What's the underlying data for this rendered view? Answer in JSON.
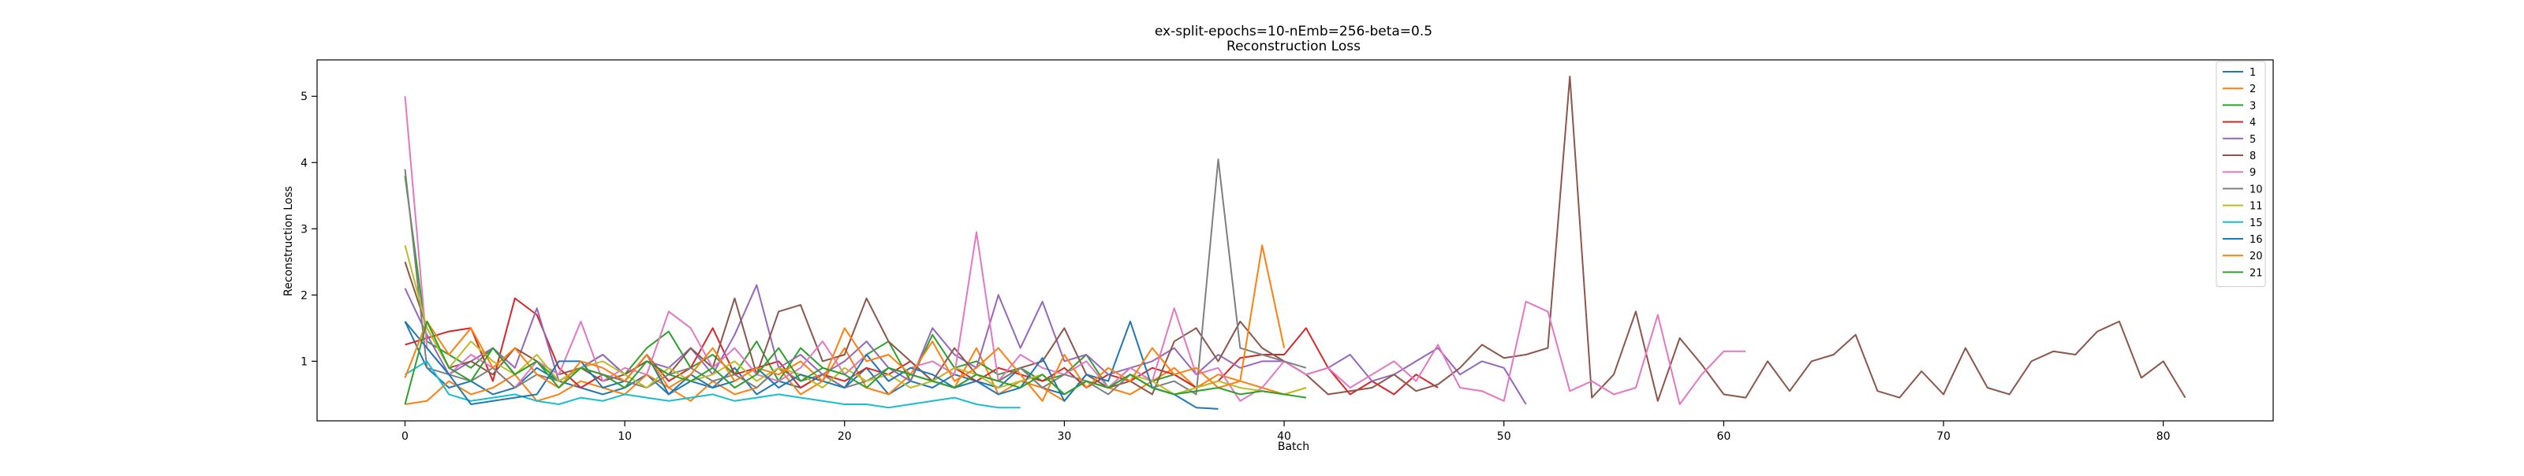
{
  "chart_data": {
    "type": "line",
    "title": "ex-split-epochs=10-nEmb=256-beta=0.5",
    "subtitle": "Reconstruction Loss",
    "xlabel": "Batch",
    "ylabel": "Reconstruction Loss",
    "xlim": [
      -4,
      85
    ],
    "ylim": [
      0.1,
      5.55
    ],
    "xticks": [
      0,
      10,
      20,
      30,
      40,
      50,
      60,
      70,
      80
    ],
    "yticks": [
      1,
      2,
      3,
      4,
      5
    ],
    "grid": false,
    "legend": "top-right",
    "series": [
      {
        "name": "1",
        "color": "#1f77b4",
        "values": [
          1.6,
          0.9,
          0.6,
          0.7,
          0.5,
          0.6,
          0.9,
          0.7,
          0.6,
          0.5,
          0.6,
          0.8,
          0.5,
          0.7,
          0.6,
          0.9,
          0.5,
          0.7,
          0.6,
          0.8,
          0.6,
          0.9,
          0.5,
          0.7,
          0.6,
          0.8,
          0.7,
          0.6,
          0.9,
          0.6,
          0.5,
          0.7,
          0.6,
          0.8,
          0.6,
          0.5
        ]
      },
      {
        "name": "2",
        "color": "#ff7f0e",
        "values": [
          0.35,
          0.4,
          0.7,
          0.5,
          0.6,
          0.8,
          0.4,
          0.5,
          0.7,
          0.6,
          0.5,
          0.8,
          0.6,
          0.4,
          0.7,
          0.5,
          0.6,
          0.9,
          0.5,
          0.7,
          1.2,
          0.6,
          0.5,
          0.8,
          0.7,
          0.6,
          1.2,
          0.5,
          0.7,
          0.6,
          0.4,
          0.8,
          0.6,
          0.5,
          0.7,
          0.9,
          0.6,
          0.8,
          0.7,
          0.6,
          0.5,
          0.6
        ]
      },
      {
        "name": "3",
        "color": "#2ca02c",
        "values": [
          3.8,
          1.3,
          1.1,
          0.9,
          1.2,
          0.8,
          1.0,
          0.7,
          0.9,
          1.1,
          0.8,
          1.2,
          1.45,
          0.9,
          1.1,
          0.8,
          1.3,
          0.7,
          1.2,
          0.9,
          0.8,
          1.1,
          1.3,
          0.7,
          1.4,
          0.9,
          1.0,
          0.8,
          0.9,
          0.7,
          0.8,
          1.1,
          0.6,
          0.9,
          0.7,
          0.8,
          0.6
        ]
      },
      {
        "name": "4",
        "color": "#d62728",
        "values": [
          1.25,
          1.35,
          1.45,
          1.5,
          0.7,
          1.95,
          1.7,
          0.9,
          0.6,
          0.8,
          0.7,
          1.1,
          0.7,
          0.9,
          1.5,
          0.8,
          0.9,
          1.0,
          0.6,
          0.8,
          0.7,
          0.9,
          0.8,
          1.0,
          0.7,
          0.9,
          0.7,
          0.9,
          0.8,
          0.7,
          0.9,
          0.6,
          0.8,
          0.7,
          0.9,
          0.8,
          0.6,
          0.7,
          1.05,
          1.1,
          1.1,
          1.5,
          0.9,
          0.5,
          0.7,
          0.5,
          0.8,
          0.6
        ]
      },
      {
        "name": "5",
        "color": "#9467bd",
        "values": [
          2.1,
          1.4,
          0.8,
          1.0,
          1.2,
          0.9,
          1.8,
          0.7,
          0.9,
          1.1,
          0.8,
          1.0,
          0.9,
          1.2,
          0.8,
          1.4,
          2.15,
          0.9,
          1.1,
          0.8,
          1.0,
          1.3,
          0.9,
          0.7,
          1.5,
          1.1,
          0.9,
          2.0,
          1.2,
          1.9,
          1.0,
          1.1,
          0.8,
          0.9,
          1.0,
          1.2,
          0.8,
          1.1,
          0.9,
          1.0,
          1.0,
          0.8,
          0.9,
          1.1,
          0.7,
          0.8,
          1.0,
          1.2,
          0.8,
          1.0,
          0.9,
          0.35
        ]
      },
      {
        "name": "8",
        "color": "#8c564b",
        "values": [
          2.5,
          1.5,
          0.9,
          1.0,
          0.8,
          1.2,
          1.0,
          0.8,
          0.9,
          0.7,
          0.8,
          1.0,
          0.8,
          1.2,
          0.9,
          1.95,
          0.8,
          1.75,
          1.85,
          1.0,
          1.1,
          1.95,
          1.3,
          1.0,
          0.7,
          1.2,
          0.8,
          0.7,
          0.9,
          1.0,
          1.5,
          0.8,
          0.6,
          0.7,
          0.5,
          1.3,
          1.5,
          1.0,
          1.6,
          1.2,
          1.0,
          0.8,
          0.5,
          0.55,
          0.6,
          0.8,
          0.55,
          0.65,
          0.9,
          1.25,
          1.05,
          1.1,
          1.2,
          5.3,
          0.45,
          0.8,
          1.75,
          0.4,
          1.35,
          0.95,
          0.5,
          0.45,
          1.0,
          0.55,
          1.0,
          1.1,
          1.4,
          0.55,
          0.45,
          0.85,
          0.5,
          1.2,
          0.6,
          0.5,
          1.0,
          1.15,
          1.1,
          1.45,
          1.6,
          0.75,
          1.0,
          0.45
        ]
      },
      {
        "name": "9",
        "color": "#e377c2",
        "values": [
          5.0,
          1.2,
          0.8,
          1.1,
          0.9,
          0.6,
          1.0,
          0.8,
          1.6,
          0.7,
          0.9,
          0.8,
          1.75,
          1.5,
          0.9,
          1.2,
          0.8,
          0.7,
          0.9,
          1.3,
          0.8,
          1.1,
          0.7,
          0.9,
          1.0,
          0.8,
          2.95,
          0.7,
          1.1,
          0.9,
          0.8,
          1.0,
          0.6,
          0.9,
          0.7,
          1.8,
          0.8,
          0.9,
          0.4,
          0.6,
          1.0,
          0.8,
          0.9,
          0.6,
          0.8,
          1.0,
          0.7,
          1.25,
          0.6,
          0.55,
          0.4,
          1.9,
          1.75,
          0.55,
          0.7,
          0.5,
          0.6,
          1.7,
          0.35,
          0.8,
          1.15,
          1.15
        ]
      },
      {
        "name": "10",
        "color": "#7f7f7f",
        "values": [
          3.9,
          0.9,
          0.8,
          0.7,
          0.9,
          0.6,
          0.8,
          0.7,
          0.9,
          0.8,
          0.7,
          0.6,
          0.8,
          0.9,
          0.7,
          0.8,
          0.6,
          0.9,
          0.7,
          0.8,
          0.6,
          0.7,
          0.9,
          0.8,
          0.7,
          0.6,
          0.8,
          0.7,
          0.9,
          0.6,
          0.8,
          0.7,
          0.5,
          0.8,
          0.6,
          0.7,
          0.5,
          4.05,
          1.2,
          1.1,
          1.0,
          0.9
        ]
      },
      {
        "name": "11",
        "color": "#bcbd22",
        "values": [
          2.75,
          1.5,
          0.9,
          1.3,
          1.0,
          0.8,
          1.1,
          0.7,
          0.9,
          1.0,
          0.8,
          0.6,
          0.9,
          0.7,
          0.8,
          1.0,
          0.7,
          0.9,
          0.8,
          0.6,
          0.9,
          0.7,
          0.8,
          0.6,
          0.7,
          0.9,
          0.8,
          0.6,
          0.7,
          0.8,
          0.5,
          0.7,
          0.6,
          0.8,
          0.7,
          0.5,
          0.6,
          0.7,
          0.6,
          0.55,
          0.5,
          0.6
        ]
      },
      {
        "name": "15",
        "color": "#17becf",
        "values": [
          0.8,
          1.0,
          0.5,
          0.4,
          0.45,
          0.5,
          0.4,
          0.35,
          0.45,
          0.4,
          0.5,
          0.45,
          0.4,
          0.45,
          0.5,
          0.4,
          0.45,
          0.5,
          0.45,
          0.4,
          0.35,
          0.35,
          0.3,
          0.35,
          0.4,
          0.45,
          0.35,
          0.3,
          0.3
        ]
      },
      {
        "name": "16",
        "color": "#1f77b4",
        "values": [
          1.6,
          1.2,
          0.8,
          0.35,
          0.4,
          0.45,
          0.5,
          1.0,
          1.0,
          0.6,
          0.7,
          1.1,
          0.5,
          0.8,
          0.6,
          0.7,
          0.9,
          0.6,
          0.8,
          0.7,
          0.6,
          1.1,
          0.7,
          0.9,
          0.8,
          0.6,
          0.7,
          0.5,
          0.6,
          1.05,
          0.4,
          0.8,
          0.7,
          1.6,
          0.6,
          0.5,
          0.3,
          0.28
        ]
      },
      {
        "name": "20",
        "color": "#ff7f0e",
        "values": [
          0.75,
          1.6,
          1.1,
          1.5,
          0.9,
          1.2,
          0.8,
          0.6,
          1.0,
          0.9,
          0.7,
          1.1,
          0.6,
          0.8,
          1.2,
          0.7,
          0.9,
          0.8,
          1.0,
          0.7,
          1.5,
          1.0,
          1.1,
          0.8,
          1.3,
          0.7,
          0.9,
          1.2,
          0.8,
          0.4,
          1.1,
          0.6,
          0.9,
          0.7,
          1.2,
          0.8,
          0.9,
          0.6,
          0.7,
          2.75,
          1.2
        ]
      },
      {
        "name": "21",
        "color": "#2ca02c",
        "values": [
          0.35,
          1.6,
          0.9,
          0.7,
          1.2,
          0.8,
          1.0,
          0.6,
          0.9,
          0.8,
          0.6,
          1.0,
          0.8,
          0.7,
          0.9,
          0.6,
          0.8,
          1.2,
          0.7,
          0.9,
          0.8,
          0.6,
          0.9,
          0.8,
          0.7,
          0.6,
          0.8,
          0.7,
          0.6,
          0.8,
          0.5,
          0.7,
          0.6,
          0.8,
          0.6,
          0.5,
          0.55,
          0.6,
          0.5,
          0.55,
          0.5,
          0.45
        ]
      }
    ]
  }
}
